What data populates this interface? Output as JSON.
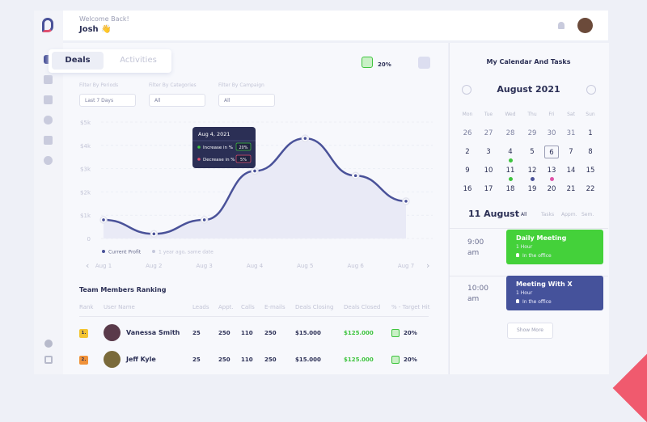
{
  "header": {
    "welcome": "Welcome Back!",
    "user": "Josh 👋"
  },
  "tabs": [
    "Deals",
    "Activities"
  ],
  "stat": {
    "value": "20%"
  },
  "filters": [
    {
      "label": "Filter By Periods",
      "value": "Last 7 Days"
    },
    {
      "label": "Filter By Categories",
      "value": "All"
    },
    {
      "label": "Filter By Campaign",
      "value": "All"
    }
  ],
  "chart_data": {
    "type": "line",
    "categories": [
      "Aug 1",
      "Aug 2",
      "Aug 3",
      "Aug 4",
      "Aug 5",
      "Aug 6",
      "Aug 7"
    ],
    "series": [
      {
        "name": "Current Profit",
        "color": "#4a5299",
        "values": [
          800,
          200,
          800,
          2900,
          4300,
          2700,
          1600
        ]
      },
      {
        "name": "1 year ago, same date",
        "color": "#c5c8dc",
        "values": [
          null,
          null,
          null,
          null,
          null,
          null,
          null
        ]
      }
    ],
    "ylim": [
      0,
      5000
    ],
    "yticks": [
      0,
      {
        "value": 1000,
        "label": "$1k"
      },
      {
        "value": 2000,
        "label": "$2k"
      },
      {
        "value": 3000,
        "label": "$3k"
      },
      {
        "value": 4000,
        "label": "$4k"
      },
      {
        "value": 5000,
        "label": "$5k"
      }
    ],
    "grid": true,
    "tooltip": {
      "title": "Aug 4, 2021",
      "rows": [
        {
          "label": "Increase in %",
          "value": "20%",
          "color": "#3ec43e"
        },
        {
          "label": "Decrease in %",
          "value": "5%",
          "color": "#e0506f"
        }
      ]
    }
  },
  "ranking": {
    "title": "Team Members Ranking",
    "columns": [
      "Rank",
      "User Name",
      "Leads",
      "Appt.",
      "Calls",
      "E-mails",
      "Deals Closing",
      "Deals Closed",
      "% - Target Hit"
    ],
    "rows": [
      [
        "1.",
        "Vanessa Smith",
        25,
        250,
        110,
        250,
        "$15.000",
        "$125.000",
        "20%"
      ],
      [
        "2.",
        "Jeff Kyle",
        25,
        250,
        110,
        250,
        "$15.000",
        "$125.000",
        "20%"
      ]
    ]
  },
  "calendar": {
    "title": "My Calendar And Tasks",
    "month": "August 2021",
    "weekdays": [
      "Mon",
      "Tue",
      "Wed",
      "Thu",
      "Fri",
      "Sat",
      "Sun"
    ],
    "weeks": [
      [
        26,
        27,
        28,
        29,
        30,
        31,
        1
      ],
      [
        2,
        3,
        4,
        5,
        6,
        7,
        8
      ],
      [
        9,
        10,
        11,
        12,
        13,
        14,
        15
      ],
      [
        16,
        17,
        18,
        19,
        20,
        21,
        22
      ]
    ],
    "day": "11 August",
    "filters": [
      "All",
      "Tasks",
      "Appm.",
      "Sem."
    ],
    "events": [
      {
        "time": "9:00 am",
        "title": "Daily Meeting",
        "duration": "1 Hour",
        "location": "In the office",
        "color": "#44d13a"
      },
      {
        "time": "10:00 am",
        "title": "Meeting With X",
        "duration": "1 Hour",
        "location": "In the office",
        "color": "#45529b"
      }
    ],
    "more": "Show More"
  }
}
